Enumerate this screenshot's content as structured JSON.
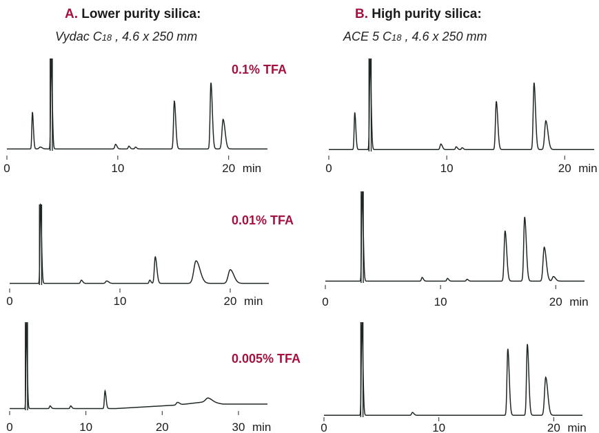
{
  "headers": {
    "a": {
      "letter": "A.",
      "title": "Lower purity silica:",
      "column_name": "Vydac C",
      "column_sub": "18",
      "column_dims": " , 4.6 x 250 mm"
    },
    "b": {
      "letter": "B.",
      "title": "High purity silica:",
      "column_name": "ACE 5 C",
      "column_sub": "18",
      "column_dims": " , 4.6 x 250 mm"
    }
  },
  "row_labels": [
    "0.1% TFA",
    "0.01% TFA",
    "0.005% TFA"
  ],
  "colors": {
    "trace": "#1e2626",
    "accent": "#a3123f"
  },
  "chart_data": [
    {
      "type": "line",
      "panel": "A",
      "condition": "0.1% TFA",
      "xlim": [
        0,
        23.5
      ],
      "ticks": [
        0,
        10,
        20
      ],
      "tick_labels": [
        "0",
        "10",
        "20"
      ],
      "unit_label": "min",
      "baseline": 0.02,
      "peaks": [
        {
          "t": 2.3,
          "h": 0.4,
          "w": 0.05
        },
        {
          "t": 3.0,
          "h": 0.02,
          "w": 0.1
        },
        {
          "t": 4.0,
          "h": 1.0,
          "w": 0.05,
          "clipped": true
        },
        {
          "t": 9.8,
          "h": 0.05,
          "w": 0.07
        },
        {
          "t": 11.0,
          "h": 0.03,
          "w": 0.06
        },
        {
          "t": 11.6,
          "h": 0.02,
          "w": 0.06
        },
        {
          "t": 15.1,
          "h": 0.52,
          "w": 0.07
        },
        {
          "t": 18.4,
          "h": 0.72,
          "w": 0.07
        },
        {
          "t": 19.5,
          "h": 0.32,
          "w": 0.1
        }
      ]
    },
    {
      "type": "line",
      "panel": "B",
      "condition": "0.1% TFA",
      "xlim": [
        0,
        22.5
      ],
      "ticks": [
        0,
        10,
        20
      ],
      "tick_labels": [
        "0",
        "10",
        "20"
      ],
      "unit_label": "min",
      "baseline": 0.02,
      "peaks": [
        {
          "t": 2.2,
          "h": 0.4,
          "w": 0.05
        },
        {
          "t": 3.5,
          "h": 1.0,
          "w": 0.05,
          "clipped": true
        },
        {
          "t": 9.5,
          "h": 0.06,
          "w": 0.07
        },
        {
          "t": 10.8,
          "h": 0.03,
          "w": 0.06
        },
        {
          "t": 11.3,
          "h": 0.02,
          "w": 0.06
        },
        {
          "t": 14.2,
          "h": 0.52,
          "w": 0.07
        },
        {
          "t": 17.4,
          "h": 0.72,
          "w": 0.07
        },
        {
          "t": 18.4,
          "h": 0.31,
          "w": 0.1
        }
      ]
    },
    {
      "type": "line",
      "panel": "A",
      "condition": "0.01% TFA",
      "xlim": [
        0,
        23.5
      ],
      "ticks": [
        0,
        10,
        20
      ],
      "tick_labels": [
        "0",
        "10",
        "20"
      ],
      "unit_label": "min",
      "baseline": 0.02,
      "peaks": [
        {
          "t": 2.8,
          "h": 1.0,
          "w": 0.05,
          "clipped": true
        },
        {
          "t": 6.5,
          "h": 0.04,
          "w": 0.07
        },
        {
          "t": 8.8,
          "h": 0.03,
          "w": 0.1
        },
        {
          "t": 12.7,
          "h": 0.04,
          "w": 0.06
        },
        {
          "t": 13.2,
          "h": 0.33,
          "w": 0.08
        },
        {
          "t": 16.9,
          "h": 0.28,
          "w": 0.2
        },
        {
          "t": 20.0,
          "h": 0.17,
          "w": 0.18
        }
      ]
    },
    {
      "type": "line",
      "panel": "B",
      "condition": "0.01% TFA",
      "xlim": [
        0,
        22.5
      ],
      "ticks": [
        0,
        10,
        20
      ],
      "tick_labels": [
        "0",
        "10",
        "20"
      ],
      "unit_label": "min",
      "baseline": 0.02,
      "peaks": [
        {
          "t": 3.2,
          "h": 1.0,
          "w": 0.05,
          "clipped": true
        },
        {
          "t": 8.4,
          "h": 0.04,
          "w": 0.06
        },
        {
          "t": 10.6,
          "h": 0.03,
          "w": 0.06
        },
        {
          "t": 12.3,
          "h": 0.02,
          "w": 0.06
        },
        {
          "t": 15.6,
          "h": 0.55,
          "w": 0.08
        },
        {
          "t": 17.3,
          "h": 0.7,
          "w": 0.08
        },
        {
          "t": 19.0,
          "h": 0.37,
          "w": 0.1
        },
        {
          "t": 19.8,
          "h": 0.05,
          "w": 0.1
        }
      ]
    },
    {
      "type": "line",
      "panel": "A",
      "condition": "0.005% TFA",
      "xlim": [
        0,
        33.8
      ],
      "ticks": [
        0,
        10,
        20,
        30
      ],
      "tick_labels": [
        "0",
        "10",
        "20",
        "30"
      ],
      "unit_label": "min",
      "baseline": 0.02,
      "drift": [
        [
          0,
          0.02
        ],
        [
          14,
          0.02
        ],
        [
          22,
          0.06
        ],
        [
          26,
          0.1
        ],
        [
          28,
          0.07
        ],
        [
          33.8,
          0.07
        ]
      ],
      "peaks": [
        {
          "t": 2.2,
          "h": 1.0,
          "w": 0.06,
          "clipped": true
        },
        {
          "t": 5.3,
          "h": 0.03,
          "w": 0.08
        },
        {
          "t": 8.0,
          "h": 0.03,
          "w": 0.08
        },
        {
          "t": 12.5,
          "h": 0.2,
          "w": 0.08
        },
        {
          "t": 22.0,
          "h": 0.03,
          "w": 0.15
        },
        {
          "t": 26.0,
          "h": 0.04,
          "w": 0.3
        }
      ]
    },
    {
      "type": "line",
      "panel": "B",
      "condition": "0.005% TFA",
      "xlim": [
        0,
        22.5
      ],
      "ticks": [
        0,
        10,
        20
      ],
      "tick_labels": [
        "0",
        "10",
        "20"
      ],
      "unit_label": "min",
      "baseline": 0.02,
      "peaks": [
        {
          "t": 3.3,
          "h": 1.0,
          "w": 0.05,
          "clipped": true
        },
        {
          "t": 7.7,
          "h": 0.03,
          "w": 0.07
        },
        {
          "t": 16.0,
          "h": 0.7,
          "w": 0.07
        },
        {
          "t": 17.7,
          "h": 0.75,
          "w": 0.07
        },
        {
          "t": 19.3,
          "h": 0.4,
          "w": 0.1
        }
      ]
    }
  ]
}
